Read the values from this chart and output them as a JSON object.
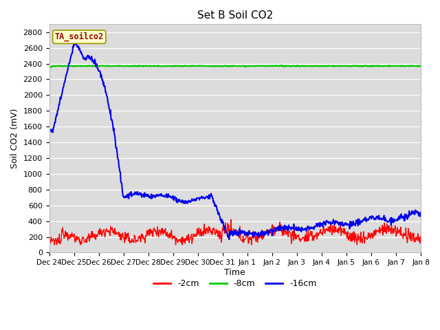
{
  "title": "Set B Soil CO2",
  "ylabel": "Soil CO2 (mV)",
  "xlabel": "Time",
  "ylim": [
    0,
    2900
  ],
  "yticks": [
    0,
    200,
    400,
    600,
    800,
    1000,
    1200,
    1400,
    1600,
    1800,
    2000,
    2200,
    2400,
    2600,
    2800
  ],
  "background_color": "#dcdcdc",
  "legend_label": "TA_soilco2",
  "legend_text_color": "#990000",
  "legend_bg": "#ffffcc",
  "legend_border": "#999900",
  "line_colors": {
    "2cm": "#ff0000",
    "8cm": "#00cc00",
    "16cm": "#0000ee"
  },
  "x_tick_labels": [
    "Dec 24",
    "Dec 25",
    "Dec 26",
    "Dec 27",
    "Dec 28",
    "Dec 29",
    "Dec 30",
    "Dec 31",
    "Jan 1",
    "Jan 2",
    "Jan 3",
    "Jan 4",
    "Jan 5",
    "Jan 6",
    "Jan 7",
    "Jan 8"
  ]
}
